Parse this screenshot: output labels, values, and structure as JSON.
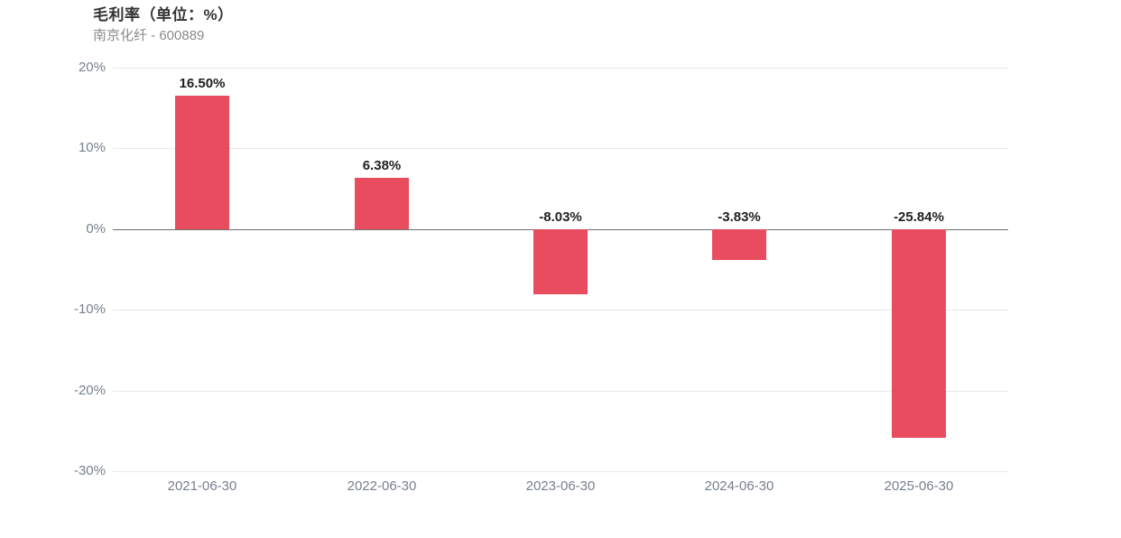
{
  "header": {
    "title": "毛利率（单位：%）",
    "subtitle": "南京化纤 - 600889"
  },
  "chart_data": {
    "type": "bar",
    "title": "毛利率（单位：%）",
    "subtitle": "南京化纤 - 600889",
    "categories": [
      "2021-06-30",
      "2022-06-30",
      "2023-06-30",
      "2024-06-30",
      "2025-06-30"
    ],
    "values": [
      16.5,
      6.38,
      -8.03,
      -3.83,
      -25.84
    ],
    "value_labels": [
      "16.50%",
      "6.38%",
      "-8.03%",
      "-3.83%",
      "-25.84%"
    ],
    "xlabel": "",
    "ylabel": "",
    "ylim": [
      -30,
      20
    ],
    "y_ticks": [
      {
        "value": 20,
        "label": "20%"
      },
      {
        "value": 10,
        "label": "10%"
      },
      {
        "value": 0,
        "label": "0%"
      },
      {
        "value": -10,
        "label": "-10%"
      },
      {
        "value": -20,
        "label": "-20%"
      },
      {
        "value": -30,
        "label": "-30%"
      }
    ],
    "grid": true,
    "legend": "none",
    "colors": {
      "bar": "#e84c5e",
      "gridline": "#e9e9e9",
      "zero_axis_line": "#6f6f6f",
      "axis_text": "#76808e",
      "value_label_text": "#1f1f1f"
    }
  }
}
